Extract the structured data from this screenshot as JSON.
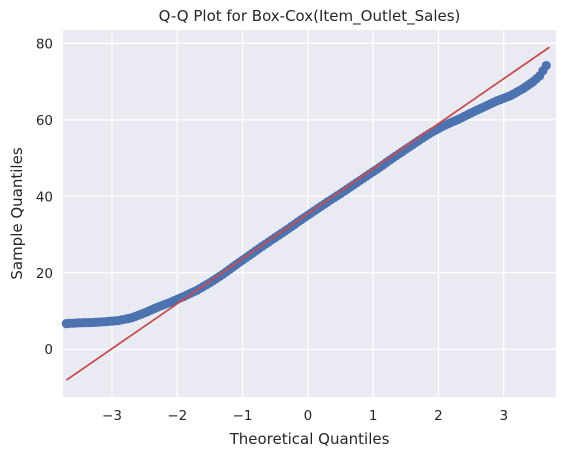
{
  "chart_data": {
    "type": "scatter",
    "title": "Q-Q Plot for Box-Cox(Item_Outlet_Sales)",
    "xlabel": "Theoretical Quantiles",
    "ylabel": "Sample Quantiles",
    "xlim": [
      -3.75,
      3.8
    ],
    "ylim": [
      -12.5,
      83.5
    ],
    "xticks": [
      -3,
      -2,
      -1,
      0,
      1,
      2,
      3
    ],
    "yticks": [
      0,
      20,
      40,
      60,
      80
    ],
    "grid": true,
    "background_color": "#eaeaf2",
    "point_color": "#4c72b0",
    "line_color": "#c44e52",
    "reference_line": {
      "x": [
        -3.7,
        3.7
      ],
      "y": [
        -8.1,
        79.0
      ]
    },
    "sample_curve": [
      [
        -3.7,
        6.7
      ],
      [
        -3.5,
        6.9
      ],
      [
        -3.3,
        7.0
      ],
      [
        -3.1,
        7.2
      ],
      [
        -2.9,
        7.5
      ],
      [
        -2.7,
        8.2
      ],
      [
        -2.5,
        9.5
      ],
      [
        -2.3,
        11.0
      ],
      [
        -2.1,
        12.3
      ],
      [
        -1.9,
        13.8
      ],
      [
        -1.7,
        15.4
      ],
      [
        -1.5,
        17.4
      ],
      [
        -1.3,
        19.6
      ],
      [
        -1.1,
        22.1
      ],
      [
        -0.9,
        24.5
      ],
      [
        -0.7,
        26.9
      ],
      [
        -0.5,
        29.2
      ],
      [
        -0.3,
        31.5
      ],
      [
        -0.1,
        33.9
      ],
      [
        0.1,
        36.2
      ],
      [
        0.3,
        38.5
      ],
      [
        0.5,
        40.7
      ],
      [
        0.7,
        43.0
      ],
      [
        0.9,
        45.3
      ],
      [
        1.1,
        47.6
      ],
      [
        1.3,
        50.0
      ],
      [
        1.5,
        52.3
      ],
      [
        1.7,
        54.6
      ],
      [
        1.9,
        56.8
      ],
      [
        2.1,
        58.6
      ],
      [
        2.3,
        60.1
      ],
      [
        2.5,
        61.8
      ],
      [
        2.7,
        63.4
      ],
      [
        2.9,
        65.0
      ],
      [
        3.1,
        66.3
      ],
      [
        3.3,
        68.2
      ],
      [
        3.45,
        70.0
      ],
      [
        3.55,
        71.5
      ],
      [
        3.65,
        74.2
      ]
    ]
  }
}
